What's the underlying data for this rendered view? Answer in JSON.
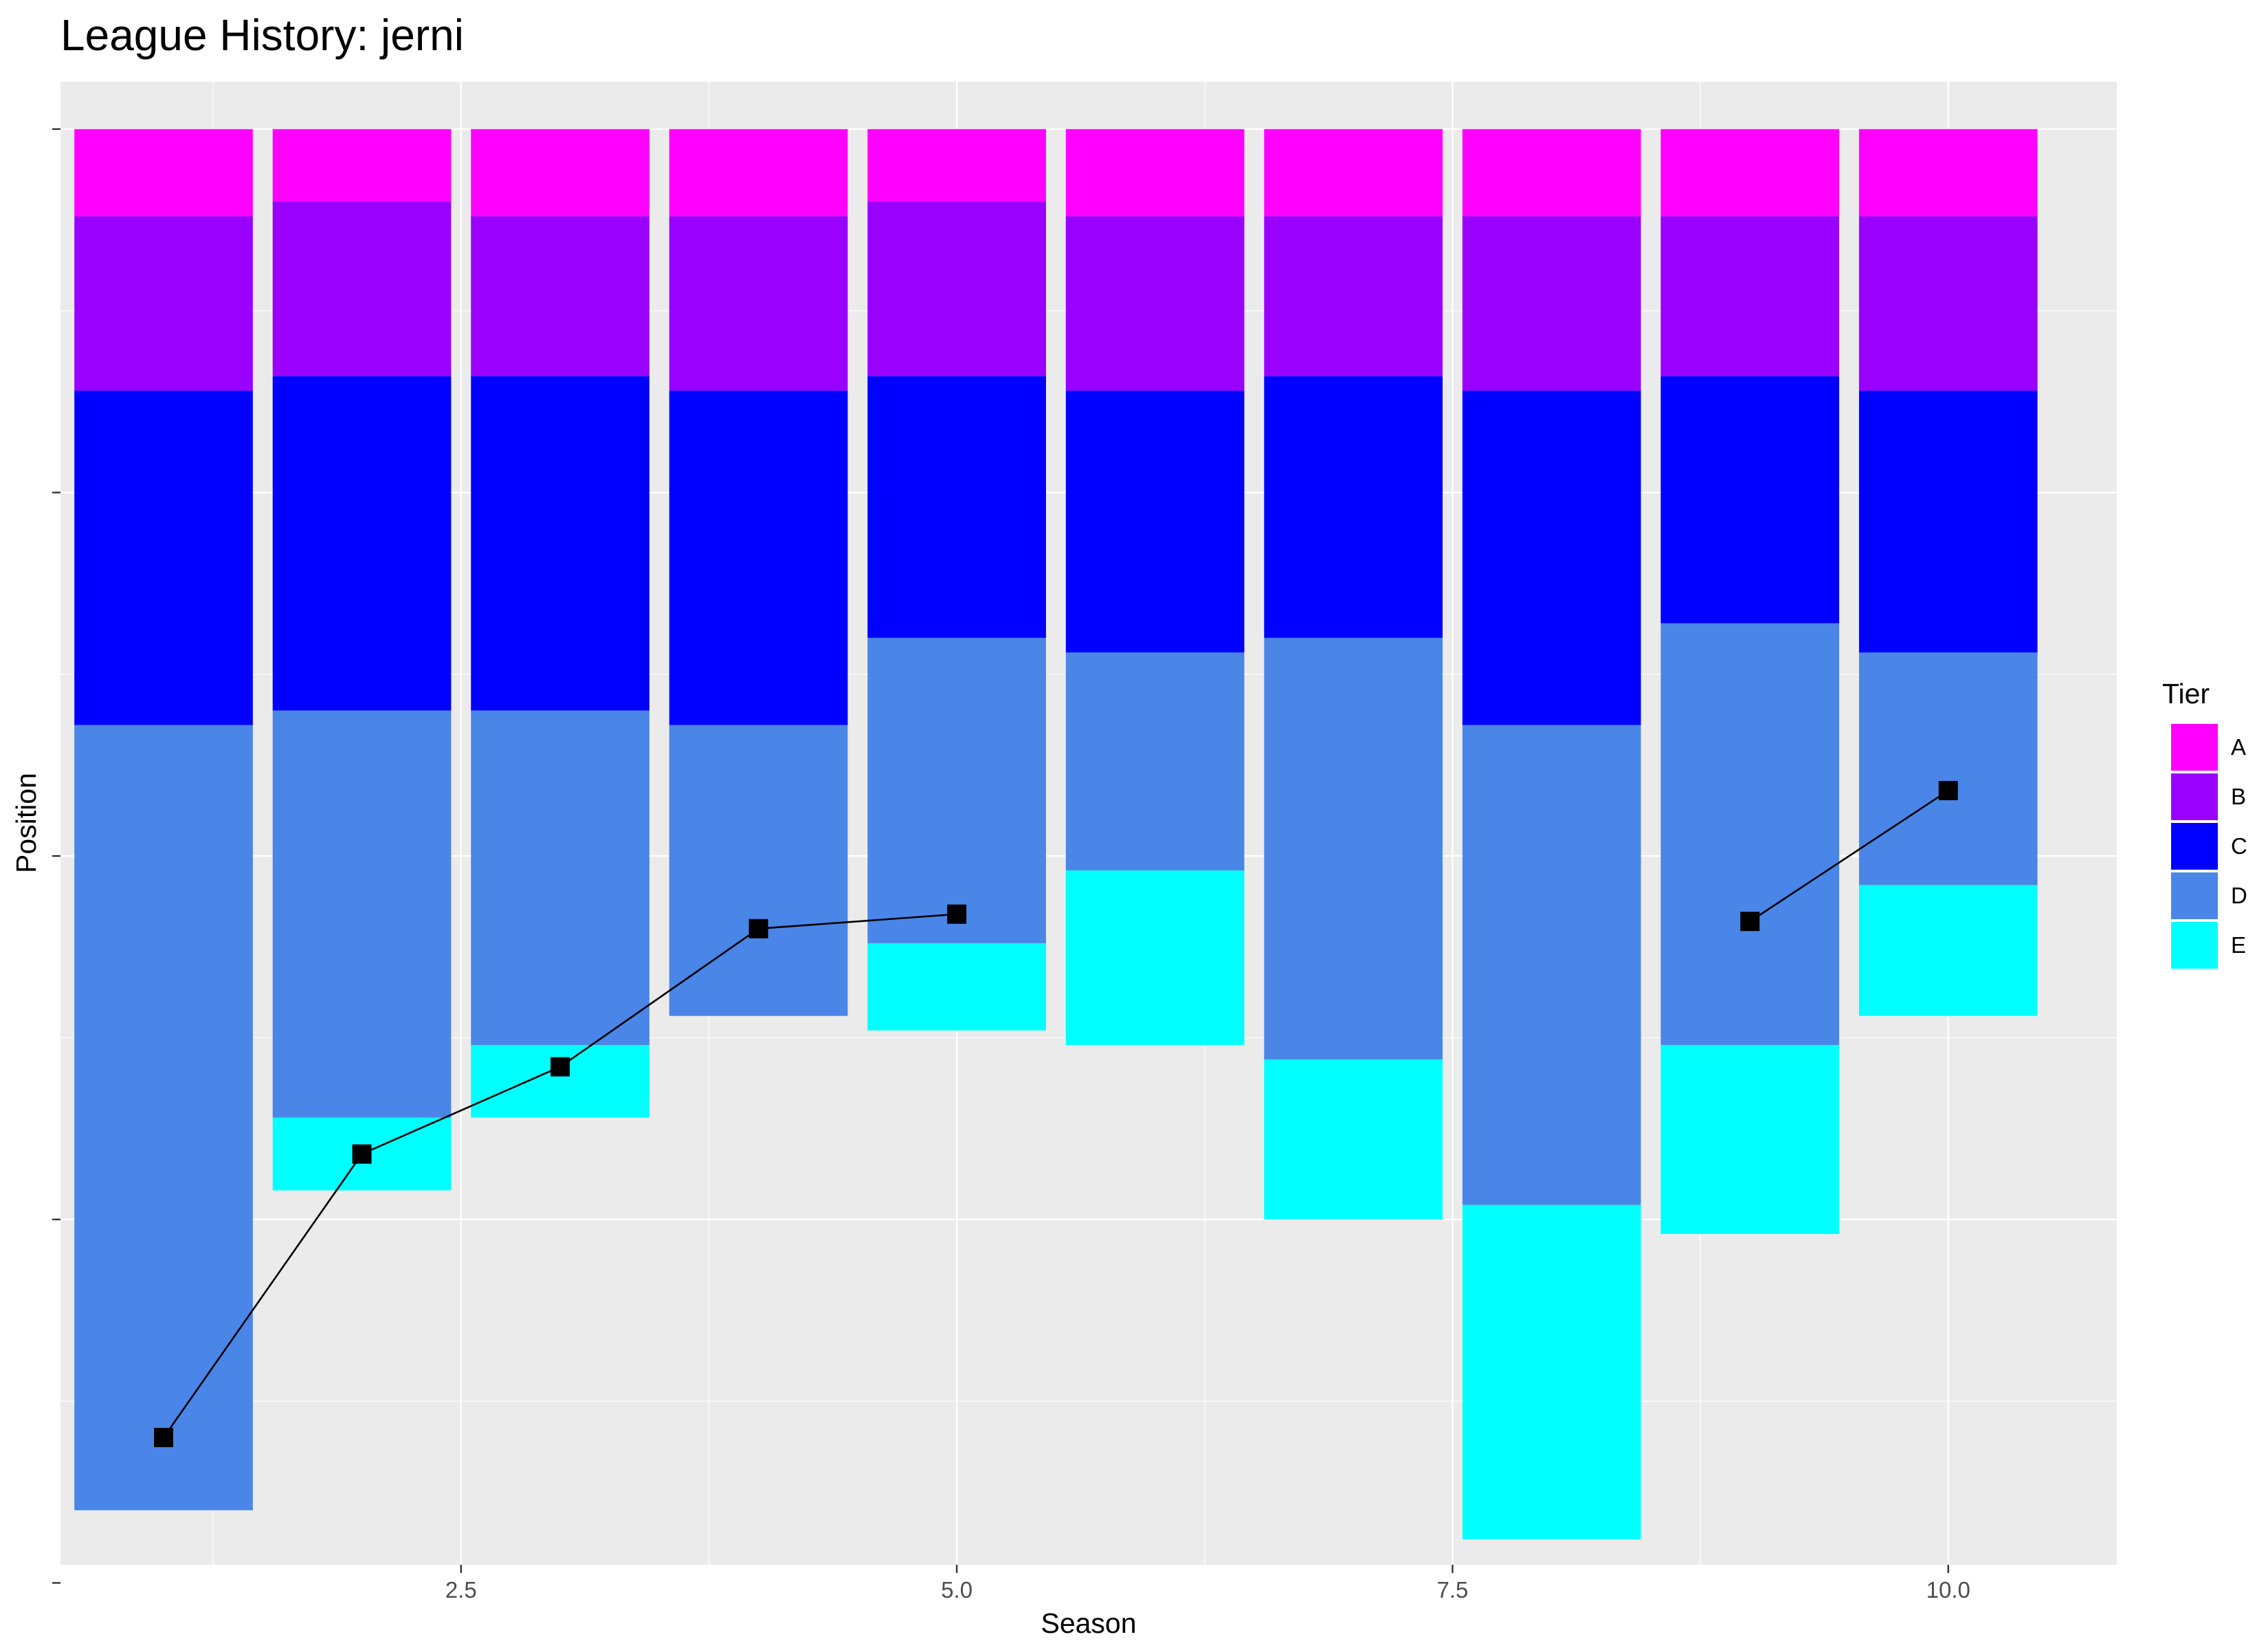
{
  "chart_data": {
    "type": "bar",
    "title": "League History: jerni",
    "xlabel": "Season",
    "ylabel": "Position",
    "xlim": [
      0.48,
      10.85
    ],
    "ylim": [
      0.35,
      20.75
    ],
    "x_ticks": [
      2.5,
      5.0,
      7.5,
      10.0
    ],
    "x_tick_labels": [
      "2.5",
      "5.0",
      "7.5",
      "10.0"
    ],
    "y_ticks": [
      1,
      6,
      11,
      16,
      21
    ],
    "y_tick_labels": [
      "",
      "",
      "",
      "",
      ""
    ],
    "grid": true,
    "legend": {
      "title": "Tier",
      "position": "right",
      "items": [
        {
          "label": "A",
          "color": "#FF00FF"
        },
        {
          "label": "B",
          "color": "#9900FF"
        },
        {
          "label": "C",
          "color": "#0000FF"
        },
        {
          "label": "D",
          "color": "#4A86E8"
        },
        {
          "label": "E",
          "color": "#00FFFF"
        }
      ]
    },
    "bars": [
      {
        "season": 1,
        "segments": [
          {
            "tier": "A",
            "from": 1,
            "to": 2.2
          },
          {
            "tier": "B",
            "from": 2.2,
            "to": 4.6
          },
          {
            "tier": "C",
            "from": 4.6,
            "to": 9.2
          },
          {
            "tier": "D",
            "from": 9.2,
            "to": 20.0
          }
        ]
      },
      {
        "season": 2,
        "segments": [
          {
            "tier": "A",
            "from": 1,
            "to": 2.0
          },
          {
            "tier": "B",
            "from": 2.0,
            "to": 4.4
          },
          {
            "tier": "C",
            "from": 4.4,
            "to": 9.0
          },
          {
            "tier": "D",
            "from": 9.0,
            "to": 14.6
          },
          {
            "tier": "E",
            "from": 14.6,
            "to": 15.6
          }
        ]
      },
      {
        "season": 3,
        "segments": [
          {
            "tier": "A",
            "from": 1,
            "to": 2.2
          },
          {
            "tier": "B",
            "from": 2.2,
            "to": 4.4
          },
          {
            "tier": "C",
            "from": 4.4,
            "to": 9.0
          },
          {
            "tier": "D",
            "from": 9.0,
            "to": 13.6
          },
          {
            "tier": "E",
            "from": 13.6,
            "to": 14.6
          }
        ]
      },
      {
        "season": 4,
        "segments": [
          {
            "tier": "A",
            "from": 1,
            "to": 2.2
          },
          {
            "tier": "B",
            "from": 2.2,
            "to": 4.6
          },
          {
            "tier": "C",
            "from": 4.6,
            "to": 9.2
          },
          {
            "tier": "D",
            "from": 9.2,
            "to": 13.2
          }
        ]
      },
      {
        "season": 5,
        "segments": [
          {
            "tier": "A",
            "from": 1,
            "to": 2.0
          },
          {
            "tier": "B",
            "from": 2.0,
            "to": 4.4
          },
          {
            "tier": "C",
            "from": 4.4,
            "to": 8.0
          },
          {
            "tier": "D",
            "from": 8.0,
            "to": 12.2
          },
          {
            "tier": "E",
            "from": 12.2,
            "to": 13.4
          }
        ]
      },
      {
        "season": 6,
        "segments": [
          {
            "tier": "A",
            "from": 1,
            "to": 2.2
          },
          {
            "tier": "B",
            "from": 2.2,
            "to": 4.6
          },
          {
            "tier": "C",
            "from": 4.6,
            "to": 8.2
          },
          {
            "tier": "D",
            "from": 8.2,
            "to": 11.2
          },
          {
            "tier": "E",
            "from": 11.2,
            "to": 13.6
          }
        ]
      },
      {
        "season": 7,
        "segments": [
          {
            "tier": "A",
            "from": 1,
            "to": 2.2
          },
          {
            "tier": "B",
            "from": 2.2,
            "to": 4.4
          },
          {
            "tier": "C",
            "from": 4.4,
            "to": 8.0
          },
          {
            "tier": "D",
            "from": 8.0,
            "to": 13.8
          },
          {
            "tier": "E",
            "from": 13.8,
            "to": 16.0
          }
        ]
      },
      {
        "season": 8,
        "segments": [
          {
            "tier": "A",
            "from": 1,
            "to": 2.2
          },
          {
            "tier": "B",
            "from": 2.2,
            "to": 4.6
          },
          {
            "tier": "C",
            "from": 4.6,
            "to": 9.2
          },
          {
            "tier": "D",
            "from": 9.2,
            "to": 15.8
          },
          {
            "tier": "E",
            "from": 15.8,
            "to": 20.4
          }
        ]
      },
      {
        "season": 9,
        "segments": [
          {
            "tier": "A",
            "from": 1,
            "to": 2.2
          },
          {
            "tier": "B",
            "from": 2.2,
            "to": 4.4
          },
          {
            "tier": "C",
            "from": 4.4,
            "to": 7.8
          },
          {
            "tier": "D",
            "from": 7.8,
            "to": 13.6
          },
          {
            "tier": "E",
            "from": 13.6,
            "to": 16.2
          }
        ]
      },
      {
        "season": 10,
        "segments": [
          {
            "tier": "A",
            "from": 1,
            "to": 2.2
          },
          {
            "tier": "B",
            "from": 2.2,
            "to": 4.6
          },
          {
            "tier": "C",
            "from": 4.6,
            "to": 8.2
          },
          {
            "tier": "D",
            "from": 8.2,
            "to": 11.4
          },
          {
            "tier": "E",
            "from": 11.4,
            "to": 13.2
          }
        ]
      }
    ],
    "bar_width": 0.9,
    "position_series": [
      [
        {
          "season": 1,
          "position": 19.0
        },
        {
          "season": 2,
          "position": 15.1
        },
        {
          "season": 3,
          "position": 13.9
        },
        {
          "season": 4,
          "position": 12.0
        },
        {
          "season": 5,
          "position": 11.8
        }
      ],
      [
        {
          "season": 9,
          "position": 11.9
        },
        {
          "season": 10,
          "position": 10.1
        }
      ]
    ]
  }
}
